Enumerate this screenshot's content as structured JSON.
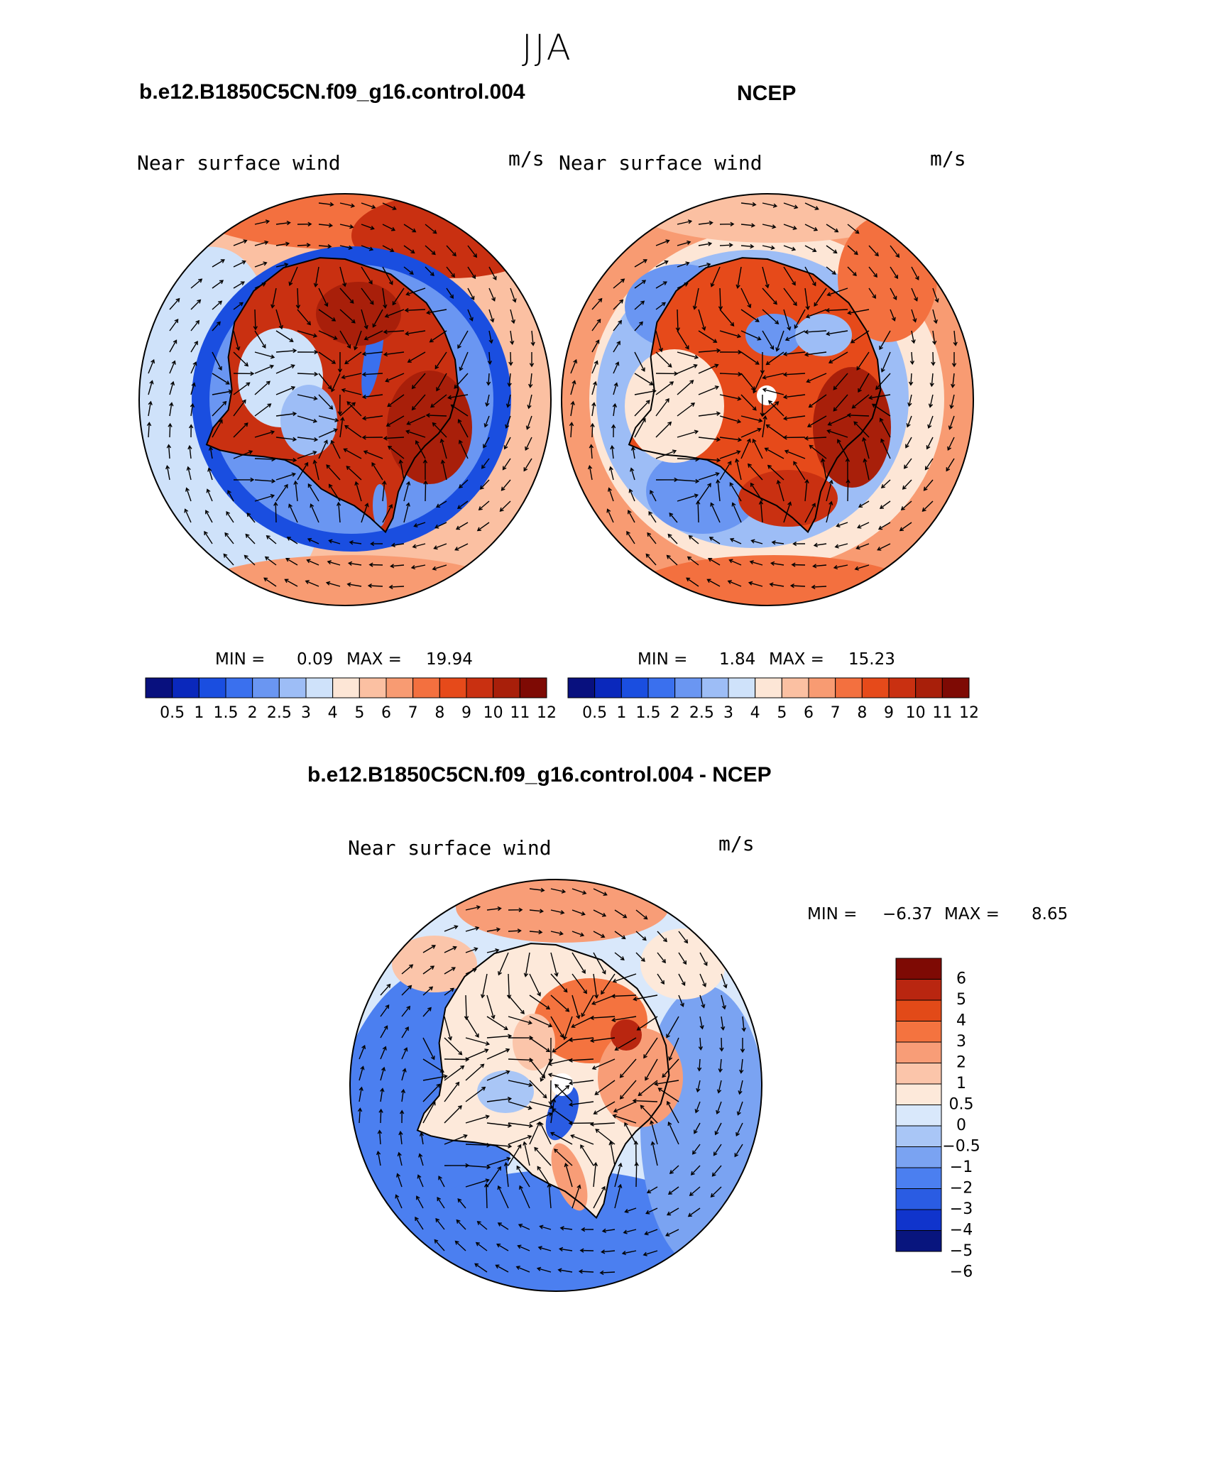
{
  "season": "JJA",
  "panels": [
    {
      "title": "b.e12.B1850C5CN.f09_g16.control.004",
      "left_label": "Near surface wind",
      "right_label": "m/s",
      "min_label": "MIN =",
      "min_value": "0.09",
      "max_label": "MAX =",
      "max_value": "19.94",
      "field": "model_speed"
    },
    {
      "title": "NCEP",
      "left_label": "Near surface wind",
      "right_label": "m/s",
      "min_label": "MIN =",
      "min_value": "1.84",
      "max_label": "MAX =",
      "max_value": "15.23",
      "field": "obs_speed"
    },
    {
      "title": "b.e12.B1850C5CN.f09_g16.control.004 - NCEP",
      "left_label": "Near surface wind",
      "right_label": "m/s",
      "min_label": "MIN =",
      "min_value": "−6.37",
      "max_label": "MAX =",
      "max_value": "8.65",
      "field": "difference"
    }
  ],
  "speed_colorbar": {
    "colors": [
      "#08107e",
      "#0a28bc",
      "#1a4ee0",
      "#3a70ee",
      "#6a96f2",
      "#9dbdf6",
      "#cfe2fa",
      "#fde6d6",
      "#fbc0a2",
      "#f89b72",
      "#f3703f",
      "#e64a1a",
      "#c93011",
      "#a81f0a",
      "#7e0a04"
    ],
    "tick_labels": [
      "0.5",
      "1",
      "1.5",
      "2",
      "2.5",
      "3",
      "4",
      "5",
      "6",
      "7",
      "8",
      "9",
      "10",
      "11",
      "12"
    ]
  },
  "diff_colorbar": {
    "colors": [
      "#7e0a04",
      "#b92610",
      "#e24a18",
      "#f4733f",
      "#f89d77",
      "#fbc5aa",
      "#fde9da",
      "#d9e8fb",
      "#a9c6f6",
      "#7aa3f2",
      "#4b7ff0",
      "#2a5ce3",
      "#1034cc",
      "#08157e"
    ],
    "tick_labels": [
      "6",
      "5",
      "4",
      "3",
      "2",
      "1",
      "0.5",
      "0",
      "−0.5",
      "−1",
      "−2",
      "−3",
      "−4",
      "−5",
      "−6"
    ]
  },
  "chart_data": {
    "type": "filled-contour-vector-map",
    "projection": "south polar stereographic",
    "variable": "Near surface wind",
    "units": "m/s",
    "season": "JJA",
    "maps": [
      {
        "name": "b.e12.B1850C5CN.f09_g16.control.004",
        "min": 0.09,
        "max": 19.94,
        "levels": [
          0.5,
          1,
          1.5,
          2,
          2.5,
          3,
          4,
          5,
          6,
          7,
          8,
          9,
          10,
          11,
          12
        ]
      },
      {
        "name": "NCEP",
        "min": 1.84,
        "max": 15.23,
        "levels": [
          0.5,
          1,
          1.5,
          2,
          2.5,
          3,
          4,
          5,
          6,
          7,
          8,
          9,
          10,
          11,
          12
        ]
      },
      {
        "name": "b.e12.B1850C5CN.f09_g16.control.004 - NCEP",
        "min": -6.37,
        "max": 8.65,
        "levels": [
          -6,
          -5,
          -4,
          -3,
          -2,
          -1,
          -0.5,
          0,
          0.5,
          1,
          2,
          3,
          4,
          5,
          6
        ]
      }
    ]
  }
}
